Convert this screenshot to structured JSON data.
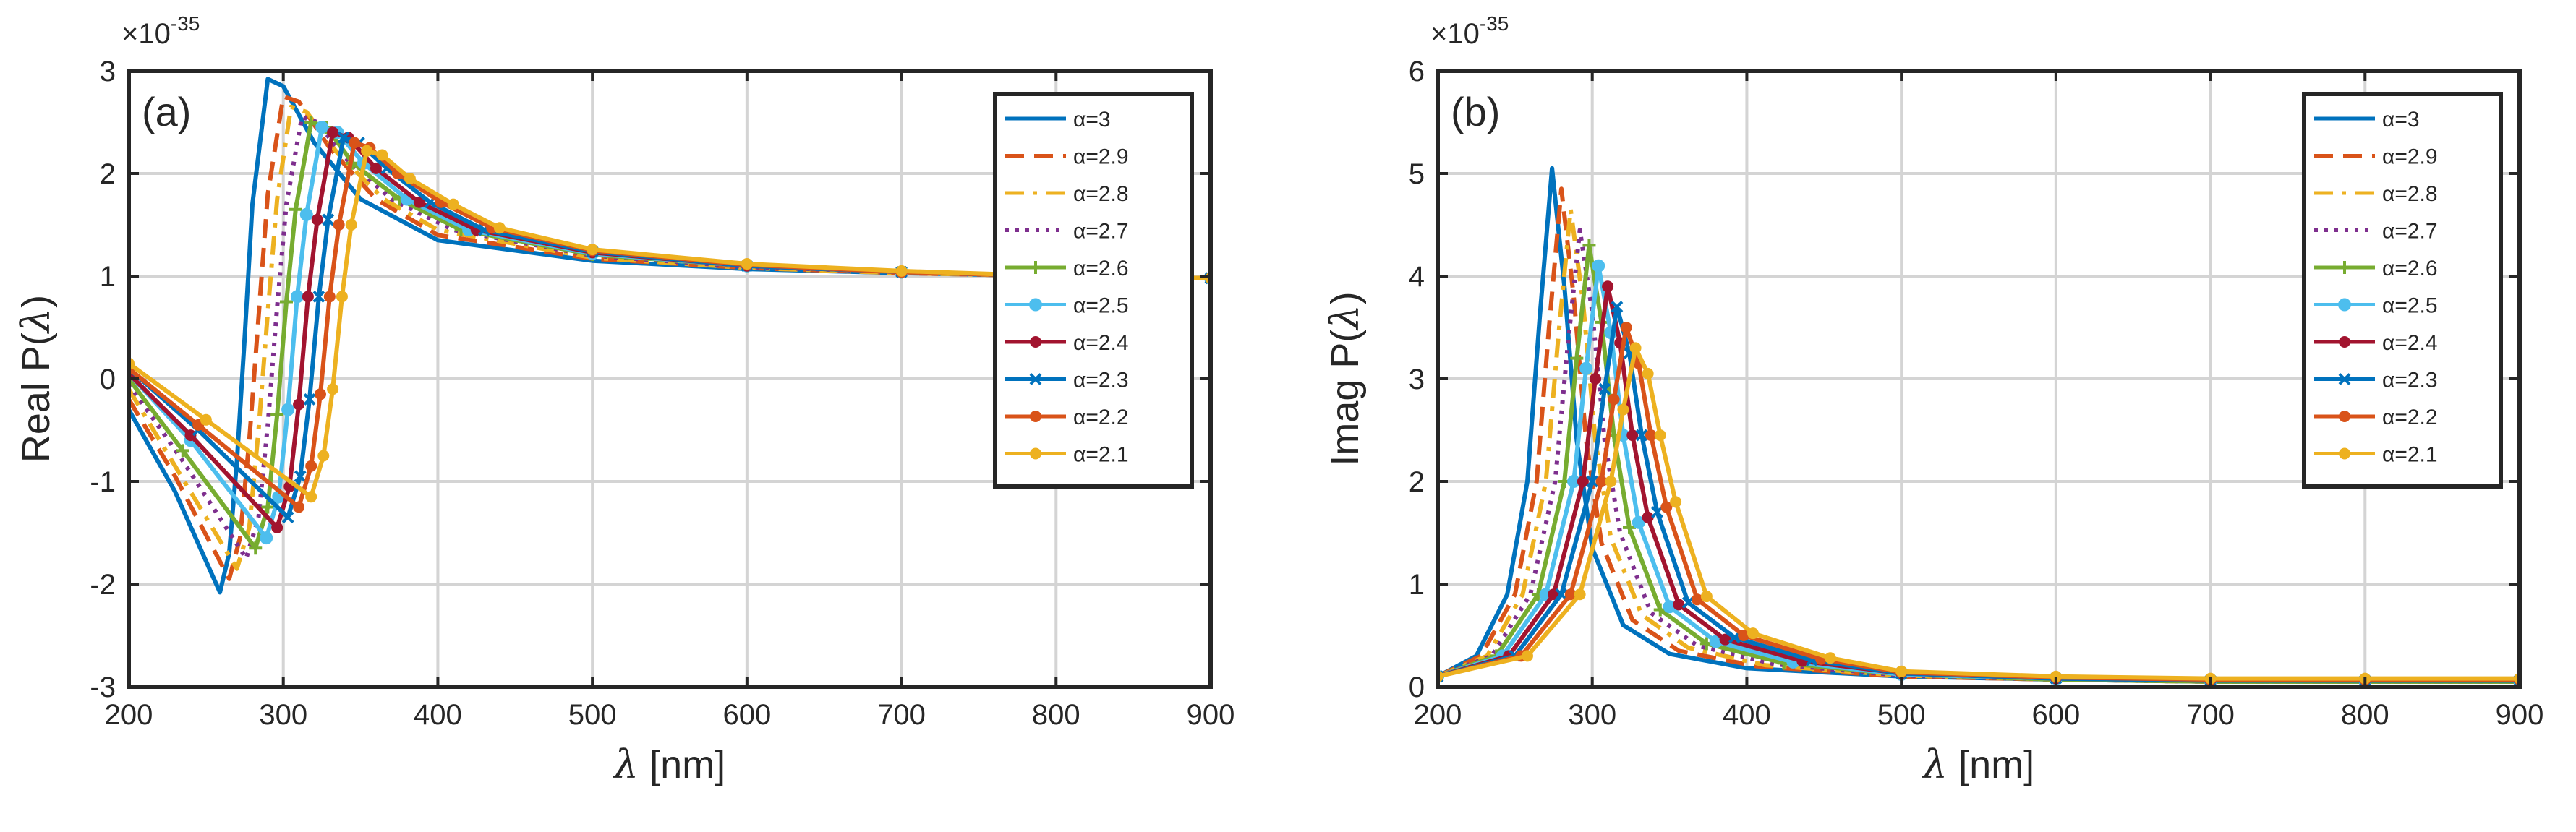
{
  "chart_data": [
    {
      "type": "line",
      "panel_label": "(a)",
      "xlabel_symbol": "λ",
      "xlabel_text": " [nm]",
      "ylabel_text": "Real  P(",
      "ylabel_symbol": "λ",
      "ylabel_close": ")",
      "exponent_base": "×10",
      "exponent_power": "-35",
      "xlim": [
        200,
        900
      ],
      "ylim": [
        -3,
        3
      ],
      "xticks": [
        200,
        300,
        400,
        500,
        600,
        700,
        800,
        900
      ],
      "yticks": [
        -3,
        -2,
        -1,
        0,
        1,
        2,
        3
      ],
      "legend_position": "top-right",
      "series": [
        {
          "name": "α=3",
          "color": "#0072BD",
          "style": "solid",
          "marker": "none",
          "x": [
            200,
            230,
            259,
            265,
            270,
            275,
            280,
            290,
            300,
            320,
            350,
            400,
            500,
            600,
            700,
            800,
            900
          ],
          "y": [
            -0.3,
            -1.1,
            -2.08,
            -1.7,
            -0.8,
            0.4,
            1.7,
            2.92,
            2.85,
            2.3,
            1.75,
            1.35,
            1.15,
            1.07,
            1.03,
            1.0,
            0.98
          ]
        },
        {
          "name": "α=2.9",
          "color": "#D95319",
          "style": "dashed",
          "marker": "none",
          "x": [
            200,
            230,
            265,
            272,
            278,
            284,
            290,
            300,
            310,
            330,
            360,
            400,
            500,
            600,
            700,
            800,
            900
          ],
          "y": [
            -0.2,
            -0.95,
            -1.95,
            -1.55,
            -0.6,
            0.6,
            1.8,
            2.75,
            2.7,
            2.25,
            1.75,
            1.4,
            1.17,
            1.08,
            1.03,
            1.0,
            0.98
          ]
        },
        {
          "name": "α=2.8",
          "color": "#EDB120",
          "style": "dashdot",
          "marker": "none",
          "x": [
            200,
            230,
            270,
            278,
            284,
            290,
            296,
            305,
            315,
            335,
            365,
            400,
            500,
            600,
            700,
            800,
            900
          ],
          "y": [
            -0.1,
            -0.85,
            -1.85,
            -1.45,
            -0.5,
            0.65,
            1.75,
            2.65,
            2.6,
            2.2,
            1.75,
            1.45,
            1.18,
            1.08,
            1.03,
            1.0,
            0.98
          ]
        },
        {
          "name": "α=2.7",
          "color": "#7E2F8E",
          "style": "dotted",
          "marker": "none",
          "x": [
            200,
            235,
            276,
            284,
            290,
            296,
            302,
            312,
            322,
            340,
            370,
            410,
            500,
            600,
            700,
            800,
            900
          ],
          "y": [
            -0.05,
            -0.8,
            -1.75,
            -1.35,
            -0.45,
            0.7,
            1.7,
            2.55,
            2.5,
            2.15,
            1.75,
            1.45,
            1.2,
            1.09,
            1.04,
            1.0,
            0.98
          ]
        },
        {
          "name": "α=2.6",
          "color": "#77AC30",
          "style": "solid",
          "marker": "plus",
          "x": [
            200,
            235,
            282,
            290,
            296,
            302,
            308,
            318,
            328,
            345,
            375,
            415,
            500,
            600,
            700,
            800,
            900
          ],
          "y": [
            0.0,
            -0.7,
            -1.65,
            -1.25,
            -0.35,
            0.75,
            1.65,
            2.5,
            2.45,
            2.1,
            1.75,
            1.45,
            1.21,
            1.1,
            1.04,
            1.0,
            0.98
          ]
        },
        {
          "name": "α=2.5",
          "color": "#4DBEEE",
          "style": "solid",
          "marker": "circle",
          "x": [
            200,
            240,
            289,
            297,
            303,
            309,
            315,
            325,
            335,
            352,
            380,
            420,
            500,
            600,
            700,
            800,
            900
          ],
          "y": [
            0.05,
            -0.6,
            -1.55,
            -1.15,
            -0.3,
            0.8,
            1.6,
            2.45,
            2.4,
            2.1,
            1.75,
            1.45,
            1.22,
            1.1,
            1.04,
            1.0,
            0.98
          ]
        },
        {
          "name": "α=2.4",
          "color": "#A2142F",
          "style": "solid",
          "marker": "dot",
          "x": [
            200,
            240,
            296,
            304,
            310,
            316,
            322,
            332,
            342,
            360,
            388,
            425,
            500,
            600,
            700,
            800,
            900
          ],
          "y": [
            0.05,
            -0.55,
            -1.45,
            -1.05,
            -0.25,
            0.8,
            1.55,
            2.4,
            2.35,
            2.05,
            1.72,
            1.45,
            1.23,
            1.1,
            1.04,
            1.0,
            0.98
          ]
        },
        {
          "name": "α=2.3",
          "color": "#0072BD",
          "style": "solid",
          "marker": "x",
          "x": [
            200,
            245,
            303,
            311,
            317,
            323,
            329,
            339,
            349,
            367,
            395,
            430,
            500,
            600,
            700,
            800,
            900
          ],
          "y": [
            0.1,
            -0.5,
            -1.35,
            -0.95,
            -0.2,
            0.8,
            1.55,
            2.35,
            2.3,
            2.05,
            1.72,
            1.45,
            1.24,
            1.1,
            1.04,
            1.0,
            0.98
          ]
        },
        {
          "name": "α=2.2",
          "color": "#D95319",
          "style": "solid",
          "marker": "dot",
          "x": [
            200,
            245,
            310,
            318,
            324,
            330,
            336,
            346,
            356,
            374,
            402,
            435,
            500,
            600,
            700,
            800,
            900
          ],
          "y": [
            0.1,
            -0.45,
            -1.25,
            -0.85,
            -0.15,
            0.8,
            1.5,
            2.3,
            2.25,
            2.0,
            1.72,
            1.47,
            1.25,
            1.11,
            1.04,
            1.0,
            0.98
          ]
        },
        {
          "name": "α=2.1",
          "color": "#EDB120",
          "style": "solid",
          "marker": "dot",
          "x": [
            200,
            250,
            318,
            326,
            332,
            338,
            344,
            354,
            364,
            382,
            410,
            440,
            500,
            600,
            700,
            800,
            900
          ],
          "y": [
            0.15,
            -0.4,
            -1.15,
            -0.75,
            -0.1,
            0.8,
            1.5,
            2.22,
            2.18,
            1.95,
            1.7,
            1.47,
            1.26,
            1.12,
            1.05,
            1.0,
            0.98
          ]
        }
      ]
    },
    {
      "type": "line",
      "panel_label": "(b)",
      "xlabel_symbol": "λ",
      "xlabel_text": " [nm]",
      "ylabel_text": "Imag  P(",
      "ylabel_symbol": "λ",
      "ylabel_close": ")",
      "exponent_base": "×10",
      "exponent_power": "-35",
      "xlim": [
        200,
        900
      ],
      "ylim": [
        0,
        6
      ],
      "xticks": [
        200,
        300,
        400,
        500,
        600,
        700,
        800,
        900
      ],
      "yticks": [
        0,
        1,
        2,
        3,
        4,
        5,
        6
      ],
      "legend_position": "top-right",
      "series": [
        {
          "name": "α=3",
          "color": "#0072BD",
          "style": "solid",
          "marker": "none",
          "x": [
            200,
            225,
            245,
            258,
            266,
            274,
            282,
            290,
            300,
            320,
            350,
            400,
            500,
            600,
            700,
            800,
            900
          ],
          "y": [
            0.1,
            0.3,
            0.9,
            2.0,
            3.6,
            5.05,
            3.9,
            2.4,
            1.35,
            0.6,
            0.32,
            0.18,
            0.1,
            0.07,
            0.05,
            0.05,
            0.05
          ]
        },
        {
          "name": "α=2.9",
          "color": "#D95319",
          "style": "dashed",
          "marker": "none",
          "x": [
            200,
            228,
            250,
            264,
            272,
            280,
            288,
            296,
            306,
            326,
            356,
            406,
            500,
            600,
            700,
            800,
            900
          ],
          "y": [
            0.1,
            0.3,
            0.9,
            2.0,
            3.5,
            4.85,
            3.8,
            2.4,
            1.4,
            0.65,
            0.35,
            0.2,
            0.1,
            0.07,
            0.05,
            0.05,
            0.05
          ]
        },
        {
          "name": "α=2.8",
          "color": "#EDB120",
          "style": "dashdot",
          "marker": "none",
          "x": [
            200,
            232,
            255,
            270,
            278,
            286,
            294,
            302,
            312,
            332,
            362,
            412,
            500,
            600,
            700,
            800,
            900
          ],
          "y": [
            0.1,
            0.3,
            0.9,
            2.0,
            3.4,
            4.65,
            3.75,
            2.4,
            1.45,
            0.7,
            0.38,
            0.21,
            0.11,
            0.07,
            0.05,
            0.05,
            0.05
          ]
        },
        {
          "name": "α=2.7",
          "color": "#7E2F8E",
          "style": "dotted",
          "marker": "none",
          "x": [
            200,
            235,
            260,
            276,
            284,
            292,
            300,
            308,
            318,
            338,
            368,
            418,
            500,
            600,
            700,
            800,
            900
          ],
          "y": [
            0.1,
            0.3,
            0.9,
            2.0,
            3.3,
            4.45,
            3.65,
            2.4,
            1.5,
            0.72,
            0.4,
            0.22,
            0.11,
            0.07,
            0.05,
            0.05,
            0.05
          ]
        },
        {
          "name": "α=2.6",
          "color": "#77AC30",
          "style": "solid",
          "marker": "plus",
          "x": [
            200,
            238,
            265,
            282,
            290,
            298,
            306,
            314,
            324,
            344,
            374,
            424,
            500,
            600,
            700,
            800,
            900
          ],
          "y": [
            0.1,
            0.3,
            0.9,
            2.0,
            3.2,
            4.3,
            3.55,
            2.45,
            1.55,
            0.75,
            0.42,
            0.23,
            0.12,
            0.07,
            0.05,
            0.05,
            0.05
          ]
        },
        {
          "name": "α=2.5",
          "color": "#4DBEEE",
          "style": "solid",
          "marker": "circle",
          "x": [
            200,
            242,
            270,
            288,
            296,
            304,
            312,
            320,
            330,
            350,
            380,
            430,
            500,
            600,
            700,
            800,
            900
          ],
          "y": [
            0.1,
            0.3,
            0.9,
            2.0,
            3.1,
            4.1,
            3.45,
            2.45,
            1.6,
            0.78,
            0.44,
            0.24,
            0.12,
            0.08,
            0.06,
            0.06,
            0.06
          ]
        },
        {
          "name": "α=2.4",
          "color": "#A2142F",
          "style": "solid",
          "marker": "dot",
          "x": [
            200,
            246,
            275,
            294,
            302,
            310,
            318,
            326,
            336,
            356,
            386,
            436,
            500,
            600,
            700,
            800,
            900
          ],
          "y": [
            0.1,
            0.3,
            0.9,
            2.0,
            3.0,
            3.9,
            3.35,
            2.45,
            1.65,
            0.8,
            0.46,
            0.25,
            0.13,
            0.08,
            0.06,
            0.06,
            0.06
          ]
        },
        {
          "name": "α=2.3",
          "color": "#0072BD",
          "style": "solid",
          "marker": "x",
          "x": [
            200,
            250,
            280,
            300,
            308,
            316,
            324,
            332,
            342,
            362,
            392,
            442,
            500,
            600,
            700,
            800,
            900
          ],
          "y": [
            0.1,
            0.3,
            0.9,
            2.0,
            2.9,
            3.7,
            3.25,
            2.45,
            1.7,
            0.82,
            0.48,
            0.26,
            0.13,
            0.08,
            0.06,
            0.06,
            0.06
          ]
        },
        {
          "name": "α=2.2",
          "color": "#D95319",
          "style": "solid",
          "marker": "dot",
          "x": [
            200,
            254,
            286,
            306,
            314,
            322,
            330,
            338,
            348,
            368,
            398,
            448,
            500,
            600,
            700,
            800,
            900
          ],
          "y": [
            0.1,
            0.3,
            0.9,
            2.0,
            2.8,
            3.5,
            3.15,
            2.45,
            1.75,
            0.85,
            0.5,
            0.27,
            0.14,
            0.09,
            0.07,
            0.07,
            0.07
          ]
        },
        {
          "name": "α=2.1",
          "color": "#EDB120",
          "style": "solid",
          "marker": "dot",
          "x": [
            200,
            258,
            292,
            312,
            320,
            328,
            336,
            344,
            354,
            374,
            404,
            454,
            500,
            600,
            700,
            800,
            900
          ],
          "y": [
            0.1,
            0.3,
            0.9,
            2.0,
            2.7,
            3.3,
            3.05,
            2.45,
            1.8,
            0.88,
            0.52,
            0.28,
            0.15,
            0.1,
            0.08,
            0.08,
            0.08
          ]
        }
      ]
    }
  ]
}
